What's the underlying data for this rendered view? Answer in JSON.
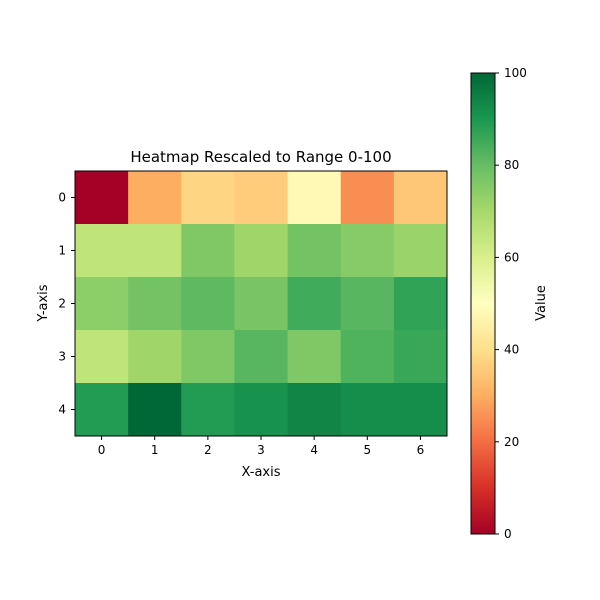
{
  "chart_data": {
    "type": "heatmap",
    "title": "Heatmap Rescaled to Range 0-100",
    "xlabel": "X-axis",
    "ylabel": "Y-axis",
    "x": [
      0,
      1,
      2,
      3,
      4,
      5,
      6
    ],
    "y": [
      0,
      1,
      2,
      3,
      4
    ],
    "values": [
      [
        0,
        30,
        38,
        36,
        48,
        25,
        35
      ],
      [
        65,
        65,
        76,
        71,
        78,
        75,
        72
      ],
      [
        74,
        78,
        81,
        77,
        85,
        82,
        87
      ],
      [
        65,
        71,
        76,
        82,
        76,
        83,
        86
      ],
      [
        89,
        100,
        89,
        91,
        94,
        92,
        92
      ]
    ],
    "value_range": [
      0,
      100
    ],
    "colorbar": {
      "label": "Value",
      "ticks": [
        0,
        20,
        40,
        60,
        80,
        100
      ],
      "colormap": "RdYlGn"
    },
    "grid": false
  }
}
